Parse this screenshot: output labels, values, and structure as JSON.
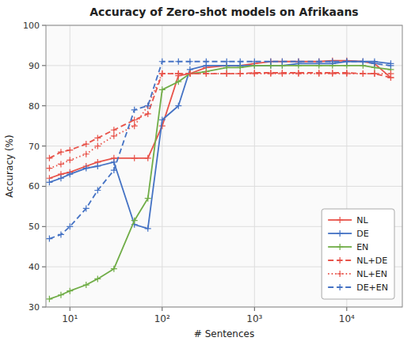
{
  "chart_data": {
    "type": "line",
    "title": "Accuracy of Zero-shot models on Afrikaans",
    "xlabel": "# Sentences",
    "ylabel": "Accuracy (%)",
    "log": "x",
    "grid": true,
    "legend": "lower right",
    "marker": "plus",
    "xlim": [
      5.5,
      40000
    ],
    "xticks": [
      {
        "value": 10,
        "label": "10¹"
      },
      {
        "value": 100,
        "label": "10²"
      },
      {
        "value": 1000,
        "label": "10³"
      },
      {
        "value": 10000,
        "label": "10⁴"
      }
    ],
    "ylim": [
      30,
      100
    ],
    "yticks": [
      30,
      40,
      50,
      60,
      70,
      80,
      90,
      100
    ],
    "x": [
      6,
      8,
      10,
      15,
      20,
      30,
      50,
      70,
      100,
      150,
      200,
      300,
      500,
      700,
      1000,
      1500,
      2000,
      3000,
      5000,
      7000,
      10000,
      15000,
      20000,
      30000
    ],
    "series": [
      {
        "name": "NL",
        "color": "#e8534a",
        "line_style": "solid",
        "values": [
          62.0,
          63.0,
          63.5,
          65.0,
          66.0,
          67.0,
          67.0,
          67.0,
          75.0,
          87.5,
          88.0,
          89.5,
          90.0,
          90.0,
          90.5,
          91.0,
          91.0,
          91.0,
          91.0,
          91.2,
          91.2,
          91.0,
          90.5,
          87.0
        ]
      },
      {
        "name": "DE",
        "color": "#4472c4",
        "line_style": "solid",
        "values": [
          61.0,
          62.0,
          63.0,
          64.5,
          65.0,
          66.0,
          50.5,
          49.5,
          76.5,
          80.0,
          89.0,
          90.0,
          90.0,
          90.0,
          90.0,
          90.0,
          90.0,
          90.5,
          90.5,
          90.5,
          91.0,
          91.0,
          91.0,
          90.5
        ]
      },
      {
        "name": "EN",
        "color": "#70ad47",
        "line_style": "solid",
        "values": [
          32.0,
          33.0,
          34.0,
          35.5,
          37.0,
          39.5,
          51.5,
          57.0,
          84.0,
          86.0,
          88.0,
          88.5,
          89.5,
          89.5,
          90.0,
          90.0,
          90.0,
          90.0,
          90.0,
          90.0,
          90.0,
          90.0,
          89.5,
          89.0
        ]
      },
      {
        "name": "NL+DE",
        "color": "#e8534a",
        "line_style": "dashed",
        "values": [
          67.0,
          68.5,
          69.0,
          70.5,
          72.0,
          74.0,
          76.5,
          78.0,
          88.0,
          88.0,
          88.0,
          88.0,
          88.0,
          88.0,
          88.2,
          88.2,
          88.2,
          88.2,
          88.2,
          88.2,
          88.2,
          88.0,
          88.0,
          87.0
        ]
      },
      {
        "name": "NL+EN",
        "color": "#e8534a",
        "line_style": "dotted",
        "values": [
          64.5,
          65.5,
          66.5,
          68.0,
          70.0,
          72.5,
          75.0,
          80.0,
          88.0,
          88.0,
          88.0,
          88.0,
          88.0,
          88.0,
          88.0,
          88.0,
          88.0,
          88.0,
          88.0,
          88.0,
          88.0,
          88.0,
          88.0,
          88.0
        ]
      },
      {
        "name": "DE+EN",
        "color": "#4472c4",
        "line_style": "dashed",
        "values": [
          47.0,
          48.0,
          50.0,
          54.5,
          59.0,
          64.0,
          79.0,
          80.0,
          91.0,
          91.0,
          91.0,
          91.0,
          91.0,
          91.0,
          91.0,
          91.0,
          91.0,
          91.0,
          91.0,
          91.0,
          91.0,
          91.0,
          90.5,
          90.0
        ]
      }
    ]
  }
}
